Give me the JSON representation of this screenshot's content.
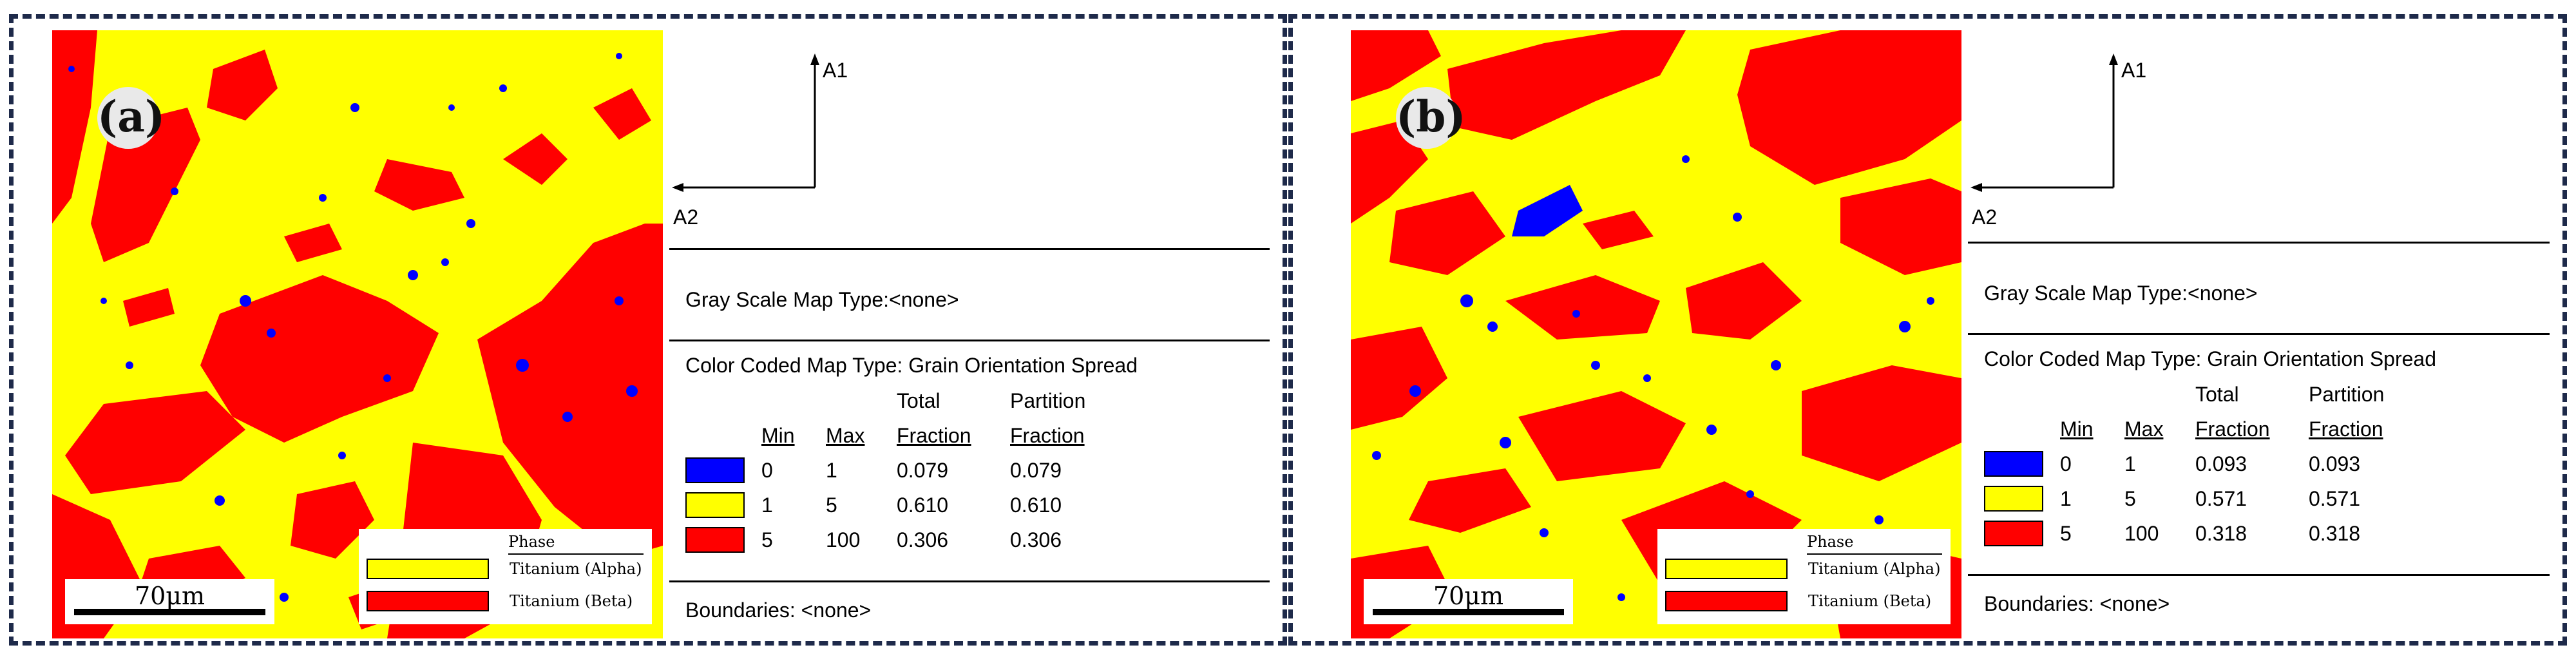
{
  "colors": {
    "alpha_yellow": "#ffff00",
    "beta_red": "#ff0000",
    "low_spread_blue": "#0000ff",
    "frame": "#1e2a4a"
  },
  "panels": [
    {
      "label": "(a)",
      "scale_bar": "70μm",
      "phase_legend": {
        "title": "Phase",
        "items": [
          {
            "name": "Titanium (Alpha)",
            "color": "#ffff00"
          },
          {
            "name": "Titanium (Beta)",
            "color": "#ff0000"
          }
        ]
      },
      "axes": {
        "vertical": "A1",
        "horizontal": "A2"
      },
      "gray_scale": "Gray Scale Map Type:<none>",
      "color_coded": "Color Coded Map Type: Grain Orientation Spread",
      "table": {
        "header_top": [
          "",
          "",
          "",
          "Total",
          "Partition"
        ],
        "header": [
          "",
          "Min",
          "Max",
          "Fraction",
          "Fraction"
        ],
        "rows": [
          {
            "color": "#0000ff",
            "min": "0",
            "max": "1",
            "total": "0.079",
            "partition": "0.079"
          },
          {
            "color": "#ffff00",
            "min": "1",
            "max": "5",
            "total": "0.610",
            "partition": "0.610"
          },
          {
            "color": "#ff0000",
            "min": "5",
            "max": "100",
            "total": "0.306",
            "partition": "0.306"
          }
        ]
      },
      "boundaries": "Boundaries: <none>"
    },
    {
      "label": "(b)",
      "scale_bar": "70μm",
      "phase_legend": {
        "title": "Phase",
        "items": [
          {
            "name": "Titanium (Alpha)",
            "color": "#ffff00"
          },
          {
            "name": "Titanium (Beta)",
            "color": "#ff0000"
          }
        ]
      },
      "axes": {
        "vertical": "A1",
        "horizontal": "A2"
      },
      "gray_scale": "Gray Scale Map Type:<none>",
      "color_coded": "Color Coded Map Type: Grain Orientation Spread",
      "table": {
        "header_top": [
          "",
          "",
          "",
          "Total",
          "Partition"
        ],
        "header": [
          "",
          "Min",
          "Max",
          "Fraction",
          "Fraction"
        ],
        "rows": [
          {
            "color": "#0000ff",
            "min": "0",
            "max": "1",
            "total": "0.093",
            "partition": "0.093"
          },
          {
            "color": "#ffff00",
            "min": "1",
            "max": "5",
            "total": "0.571",
            "partition": "0.571"
          },
          {
            "color": "#ff0000",
            "min": "5",
            "max": "100",
            "total": "0.318",
            "partition": "0.318"
          }
        ]
      },
      "boundaries": "Boundaries: <none>"
    }
  ]
}
